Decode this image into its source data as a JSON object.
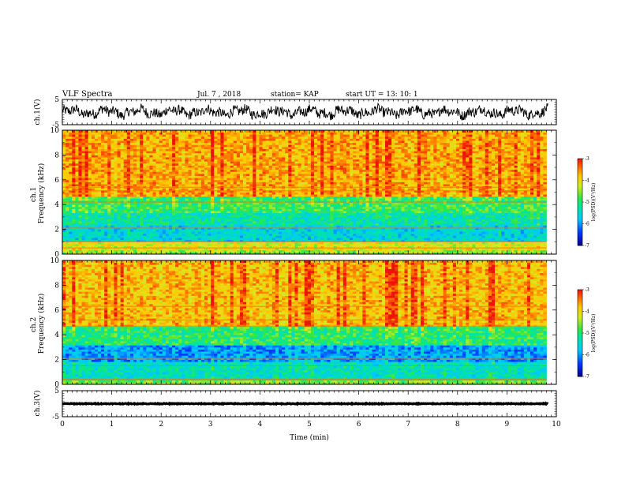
{
  "header": {
    "title": "VLF Spectra",
    "date": "Jul. 7 , 2018",
    "station": "station= KAP",
    "start": "start UT = 13: 10: 1"
  },
  "chart_data": [
    {
      "type": "line",
      "panel": "ch1-waveform",
      "ylabel": "ch.1(V)",
      "ylim": [
        -5,
        5
      ],
      "yticks": [
        "5",
        "-5"
      ],
      "xlim": [
        0,
        10
      ],
      "description_values": {
        "center": 0,
        "typical_amplitude": 2.5
      }
    },
    {
      "type": "heatmap",
      "panel": "ch1-spectrogram",
      "ylabel": "ch.1\nFrequency (kHz)",
      "ylim": [
        0,
        10
      ],
      "yticks": [
        "0",
        "2",
        "4",
        "6",
        "8",
        "10"
      ],
      "xlim": [
        0,
        9.8
      ],
      "colorbar": {
        "label": "log(PSD)(V²/Hz)",
        "range": [
          -7,
          -3
        ],
        "ticks": [
          "-3",
          "-4",
          "-5",
          "-6",
          "-7"
        ]
      },
      "bands": [
        {
          "from": 0,
          "to": 0.3,
          "level": -4.5
        },
        {
          "from": 0.3,
          "to": 1.0,
          "level": -4.2
        },
        {
          "from": 1.0,
          "to": 2.4,
          "level": -5.6
        },
        {
          "from": 2.4,
          "to": 3.4,
          "level": -5.3
        },
        {
          "from": 3.4,
          "to": 4.6,
          "level": -4.9
        },
        {
          "from": 4.6,
          "to": 10,
          "level": -3.7
        }
      ]
    },
    {
      "type": "heatmap",
      "panel": "ch2-spectrogram",
      "ylabel": "ch.2\nFrequency (kHz)",
      "ylim": [
        0,
        10
      ],
      "yticks": [
        "0",
        "2",
        "4",
        "6",
        "8",
        "10"
      ],
      "xlim": [
        0,
        9.8
      ],
      "colorbar": {
        "label": "log(PSD)(V²/Hz)",
        "range": [
          -7,
          -3
        ],
        "ticks": [
          "-3",
          "-4",
          "-5",
          "-6",
          "-7"
        ]
      },
      "bands": [
        {
          "from": 0,
          "to": 0.4,
          "level": -4.6
        },
        {
          "from": 0.4,
          "to": 1.8,
          "level": -5.4
        },
        {
          "from": 1.8,
          "to": 3.1,
          "level": -6.0
        },
        {
          "from": 3.1,
          "to": 4.6,
          "level": -5.0
        },
        {
          "from": 4.6,
          "to": 10,
          "level": -3.8
        }
      ]
    },
    {
      "type": "line",
      "panel": "ch3-waveform",
      "ylabel": "ch.3(V)",
      "ylim": [
        -5,
        5
      ],
      "yticks": [
        "5",
        "-5"
      ],
      "xlim": [
        0,
        10
      ],
      "xticks": [
        "0",
        "1",
        "2",
        "3",
        "4",
        "5",
        "6",
        "7",
        "8",
        "9",
        "10"
      ],
      "xlabel": "Time (min)",
      "description_values": {
        "center": 0,
        "typical_amplitude": 0.15
      }
    }
  ]
}
